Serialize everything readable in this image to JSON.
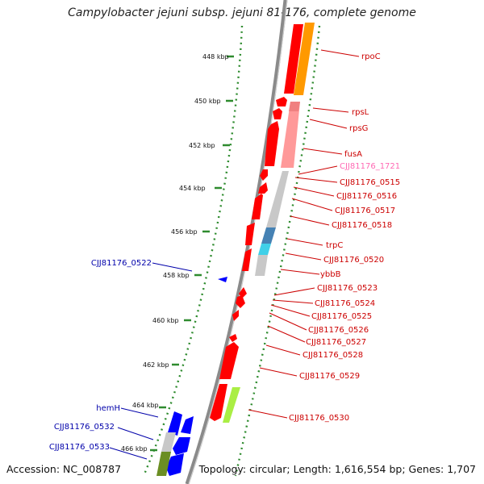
{
  "title": "Campylobacter jejuni subsp. jejuni 81-176, complete genome",
  "accession": "Accession: NC_008787",
  "summary": "Topology: circular; Length: 1,616,554 bp; Genes: 1,707",
  "colors": {
    "backbone": "#8a8a8a",
    "ruler_ticks": "#2e8b2e",
    "gene_right": "#ff0000",
    "gene_left": "#0000ff",
    "label_right": "#cc0000",
    "label_left": "#0000aa",
    "label_pink": "#ff69b4",
    "orange_feature": "#ff9900",
    "pink_feature": "#f08080",
    "grey_feature": "#c0c0c0",
    "steelblue_feature": "#4682b4",
    "cyan_feature": "#40d0e8",
    "lime_feature": "#aaee44",
    "olive_feature": "#6b8e23"
  },
  "ruler_labels": [
    "448 kbp",
    "450 kbp",
    "452 kbp",
    "454 kbp",
    "456 kbp",
    "458 kbp",
    "460 kbp",
    "462 kbp",
    "464 kbp",
    "466 kbp"
  ],
  "right_gene_labels": [
    "rpoC",
    "rpsL",
    "rpsG",
    "fusA",
    "CJJ81176_1721",
    "CJJ81176_0515",
    "CJJ81176_0516",
    "CJJ81176_0517",
    "CJJ81176_0518",
    "trpC",
    "CJJ81176_0520",
    "ybbB",
    "CJJ81176_0523",
    "CJJ81176_0524",
    "CJJ81176_0525",
    "CJJ81176_0526",
    "CJJ81176_0527",
    "CJJ81176_0528",
    "CJJ81176_0529",
    "CJJ81176_0530"
  ],
  "left_gene_labels": [
    "CJJ81176_0522",
    "hemH",
    "CJJ81176_0532",
    "CJJ81176_0533"
  ]
}
